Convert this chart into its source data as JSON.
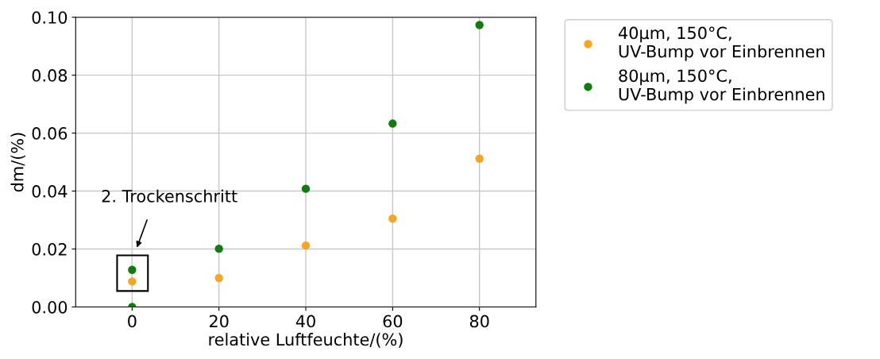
{
  "chart_data": {
    "type": "scatter",
    "xlabel": "relative Luftfeuchte/(%)",
    "ylabel": "dm/(%)",
    "xlim": [
      -13,
      93
    ],
    "ylim": [
      0,
      0.1
    ],
    "xticks": [
      0,
      20,
      40,
      60,
      80
    ],
    "yticks": [
      {
        "value": 0,
        "label": "0.00"
      },
      {
        "value": 0.02,
        "label": "0.02"
      },
      {
        "value": 0.04,
        "label": "0.04"
      },
      {
        "value": 0.06,
        "label": "0.06"
      },
      {
        "value": 0.08,
        "label": "0.08"
      },
      {
        "value": 0.1,
        "label": "0.10"
      }
    ],
    "series": [
      {
        "name": "40µm, 150°C,\nUV-Bump vor Einbrennen",
        "color": "#f5a623",
        "x": [
          0,
          20,
          40,
          60,
          80
        ],
        "values": [
          0.0088,
          0.01,
          0.0212,
          0.0305,
          0.0512
        ]
      },
      {
        "name": "80µm, 150°C,\nUV-Bump vor Einbrennen",
        "color": "#107c10",
        "x": [
          0,
          0,
          20,
          40,
          60,
          80
        ],
        "values": [
          0.0128,
          0.0,
          0.0201,
          0.0408,
          0.0633,
          0.0973
        ]
      }
    ],
    "annotations": [
      "2. Trockenschritt"
    ],
    "grid": true,
    "legend": "top right",
    "marker": "circle"
  }
}
